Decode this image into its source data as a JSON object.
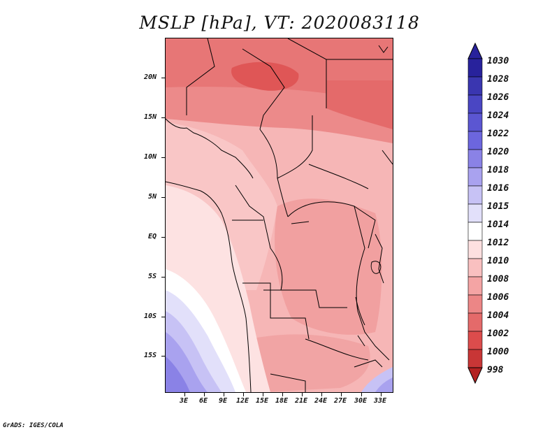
{
  "title": "MSLP [hPa], VT: 2020083118",
  "footer": "GrADS: IGES/COLA",
  "map": {
    "lat_labels": [
      "20N",
      "15N",
      "10N",
      "5N",
      "EQ",
      "5S",
      "10S",
      "15S"
    ],
    "lon_labels": [
      "3E",
      "6E",
      "9E",
      "12E",
      "15E",
      "18E",
      "21E",
      "24E",
      "27E",
      "30E",
      "33E"
    ]
  },
  "colorbar": {
    "levels": [
      "1030",
      "1028",
      "1026",
      "1024",
      "1022",
      "1020",
      "1018",
      "1016",
      "1015",
      "1014",
      "1012",
      "1010",
      "1008",
      "1006",
      "1004",
      "1002",
      "1000",
      "998"
    ],
    "colors": [
      "#28229c",
      "#3a36b0",
      "#4a46c3",
      "#5b56d2",
      "#6c66de",
      "#8a82e6",
      "#a9a2ef",
      "#c7c2f5",
      "#e2e0fa",
      "#ffffff",
      "#fde0e0",
      "#f9c0c0",
      "#f4a4a4",
      "#ec8686",
      "#e46a6a",
      "#dc4c4c",
      "#c83636",
      "#b32222"
    ]
  }
}
